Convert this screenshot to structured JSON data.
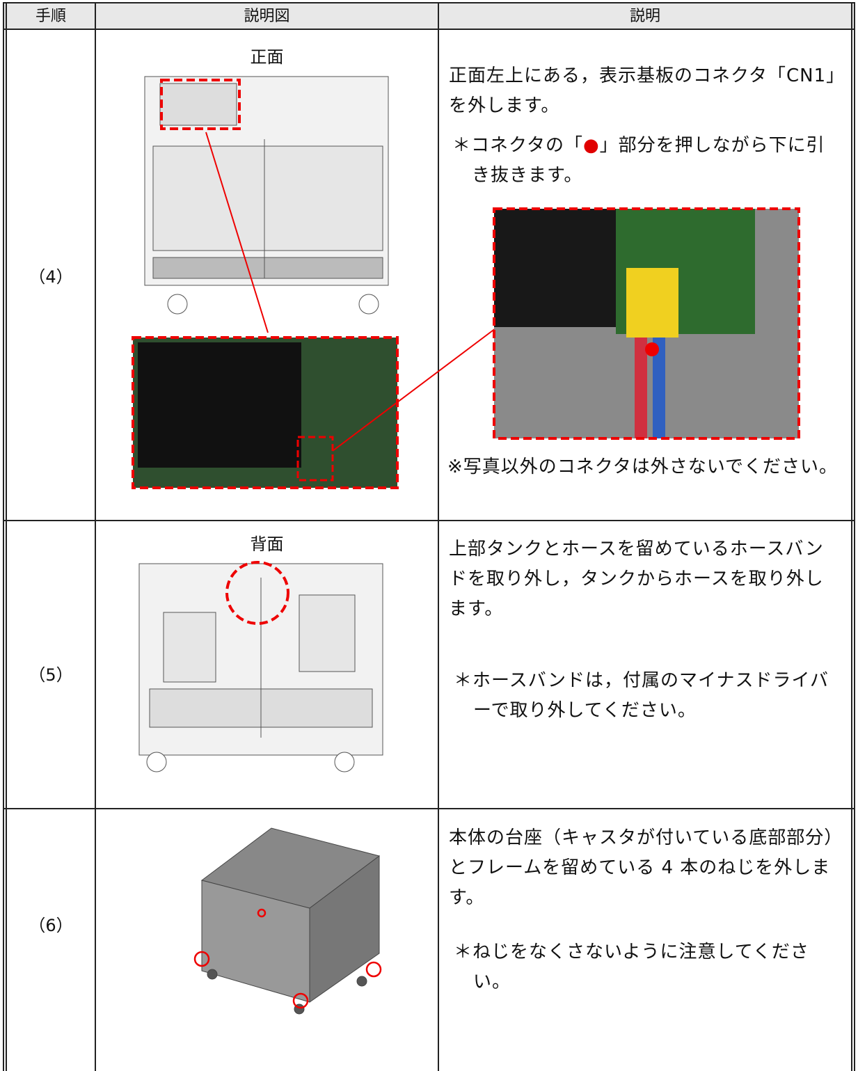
{
  "table": {
    "header": [
      "手順",
      "説明図",
      "説明"
    ],
    "rows": [
      {
        "step": "（4）",
        "figure_label": "正面",
        "text": "正面左上にある，表示基板のコネクタ「CN1」を外します。",
        "note_parts": [
          "＊コネクタの「",
          "●",
          "」部分を押しながら下に引き抜きます。"
        ],
        "warning": "※写真以外のコネクタは外さないでください。"
      },
      {
        "step": "（5）",
        "figure_label": "背面",
        "text": "上部タンクとホースを留めているホースバンドを取り外し，タンクからホースを取り外します。",
        "note": "＊ホースバンドは，付属のマイナスドライバーで取り外してください。"
      },
      {
        "step": "（6）",
        "text": "本体の台座（キャスタが付いている底部部分）とフレームを留めている 4 本のねじを外します。",
        "note": "＊ねじをなくさないように注意してください。"
      }
    ]
  }
}
